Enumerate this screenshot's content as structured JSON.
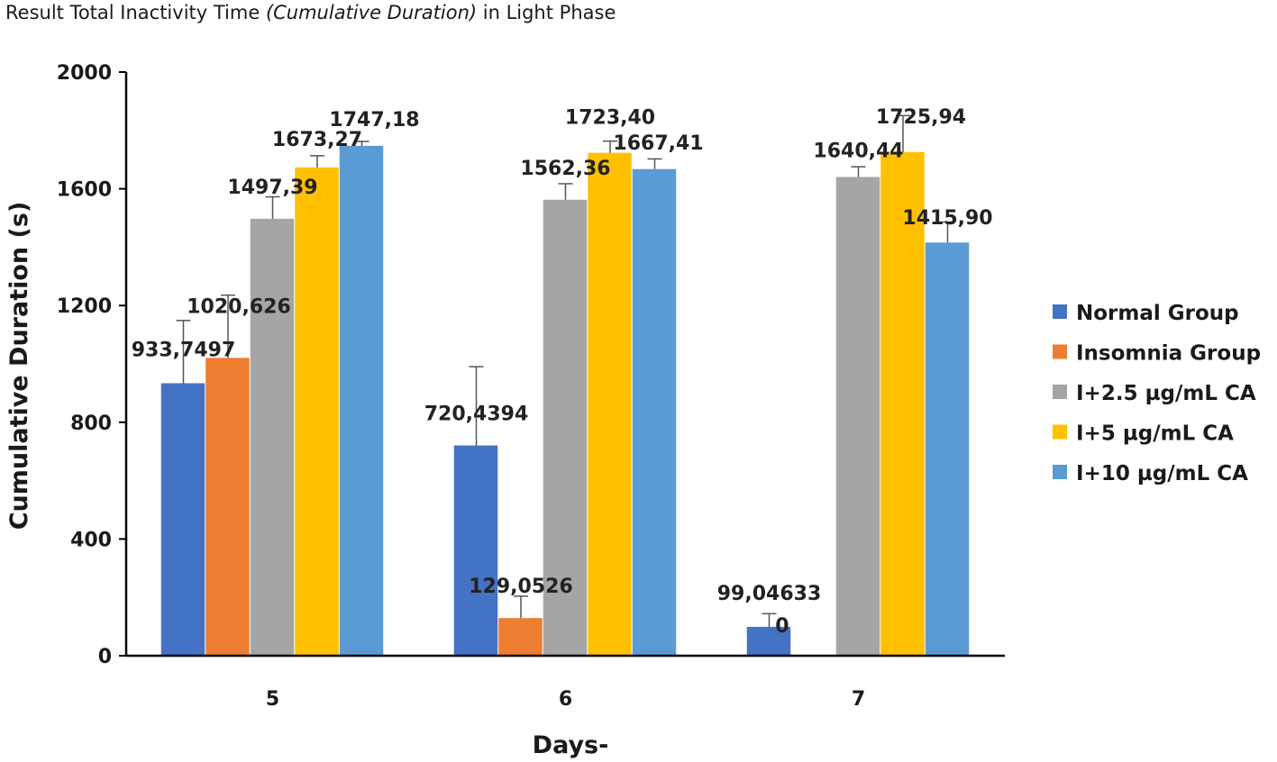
{
  "chart_data": {
    "type": "bar",
    "title_prefix": "Result Total Inactivity Time ",
    "title_italic": "(Cumulative Duration)",
    "title_suffix": " in Light Phase",
    "xlabel": "Days-",
    "ylabel": "Cumulative Duration (s)",
    "ylim": [
      0,
      2000
    ],
    "yticks": [
      0,
      400,
      800,
      1200,
      1600,
      2000
    ],
    "categories": [
      "5",
      "6",
      "7"
    ],
    "legend_position": "right",
    "series": [
      {
        "name": "Normal Group",
        "color": "#4472c4",
        "values": [
          933.7497,
          720.4394,
          99.04633
        ],
        "labels": [
          "933,7497",
          "720,4394",
          "99,04633"
        ],
        "errors": [
          215,
          270,
          45
        ]
      },
      {
        "name": "Insomnia Group",
        "color": "#ed7d31",
        "values": [
          1020.626,
          129.0526,
          0
        ],
        "labels": [
          "1020,626",
          "129,0526",
          "0"
        ],
        "errors": [
          215,
          75,
          0
        ]
      },
      {
        "name": "I+2.5 µg/mL CA",
        "color": "#a5a5a5",
        "values": [
          1497.39,
          1562.36,
          1640.44
        ],
        "labels": [
          "1497,39",
          "1562,36",
          "1640,44"
        ],
        "errors": [
          75,
          55,
          35
        ]
      },
      {
        "name": "I+5 µg/mL CA",
        "color": "#ffc000",
        "values": [
          1673.27,
          1723.4,
          1725.94
        ],
        "labels": [
          "1673,27",
          "1723,40",
          "1725,94"
        ],
        "errors": [
          40,
          40,
          125
        ]
      },
      {
        "name": "I+10 µg/mL CA",
        "color": "#5b9bd5",
        "values": [
          1747.18,
          1667.41,
          1415.9
        ],
        "labels": [
          "1747,18",
          "1667,41",
          "1415,90"
        ],
        "errors": [
          15,
          35,
          70
        ]
      }
    ]
  }
}
